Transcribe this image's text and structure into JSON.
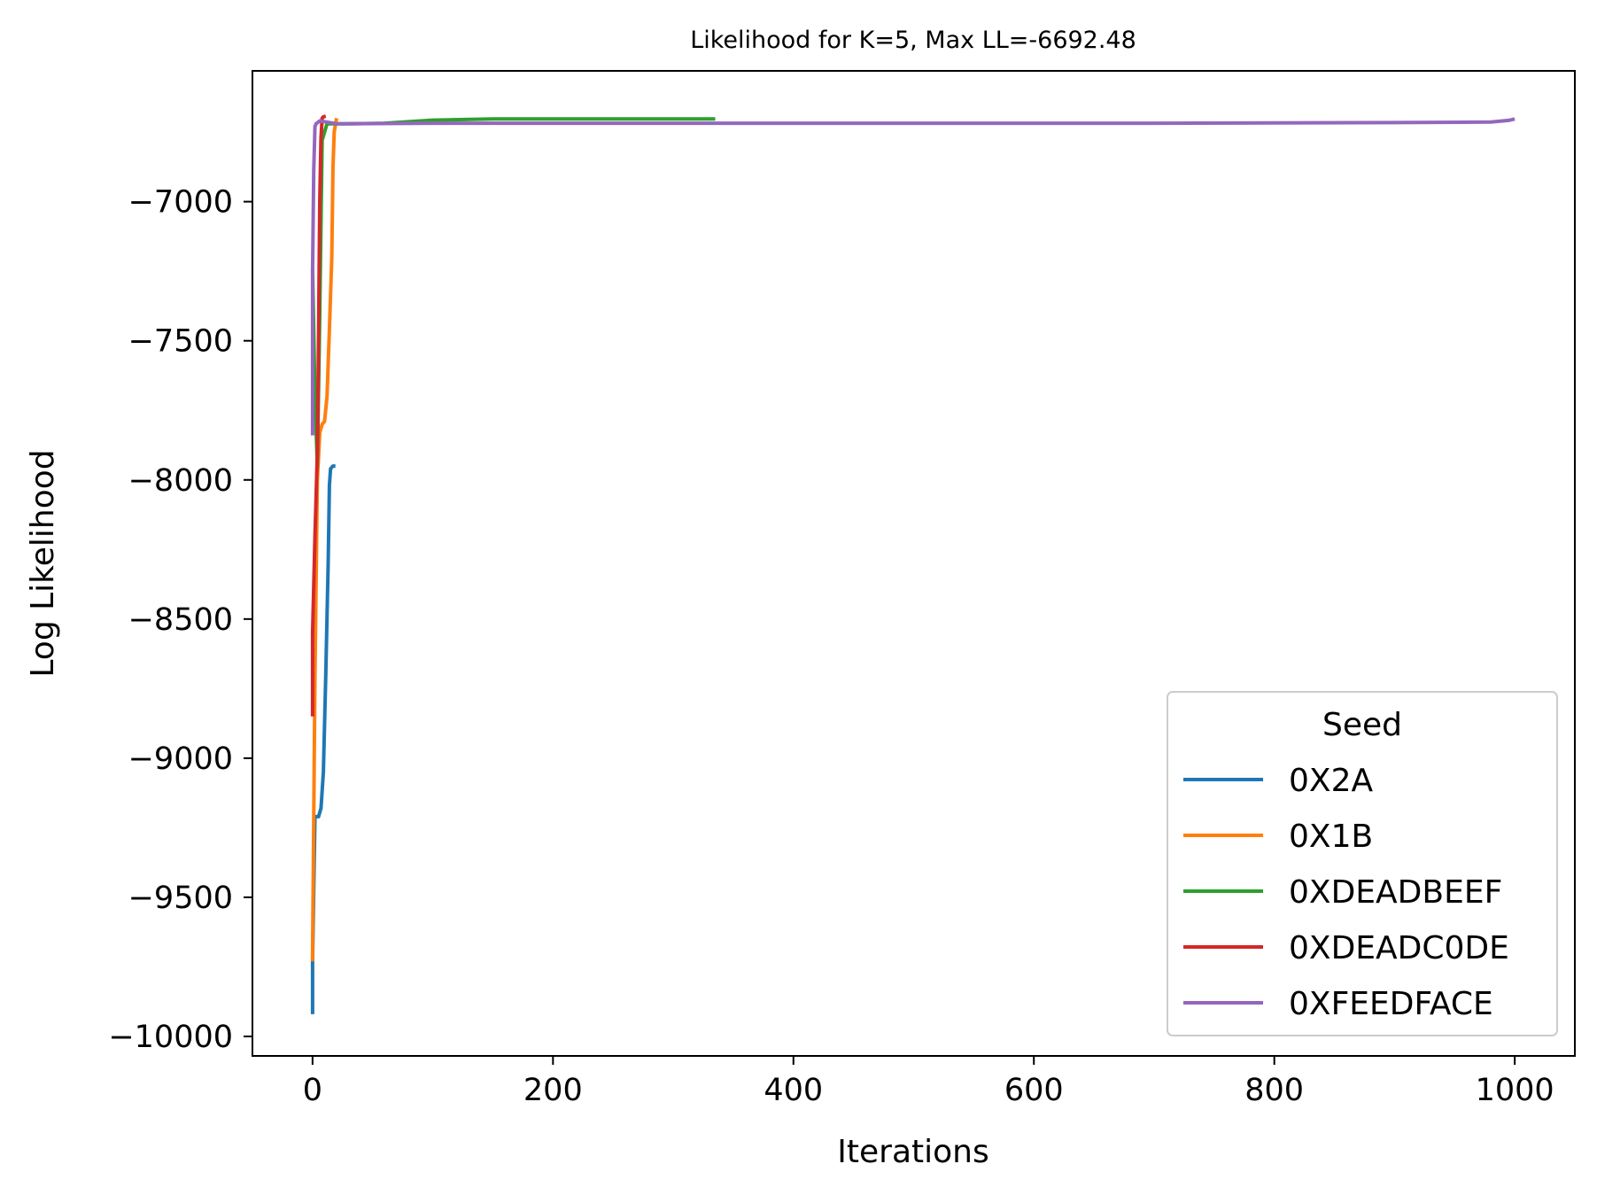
{
  "chart_data": {
    "type": "line",
    "title": "Likelihood for K=5,  Max LL=-6692.48",
    "xlabel": "Iterations",
    "ylabel": "Log Likelihood",
    "xlim": [
      -50,
      1050
    ],
    "ylim": [
      -10070,
      -6530
    ],
    "xticks": [
      0,
      200,
      400,
      600,
      800,
      1000
    ],
    "xtick_labels": [
      "0",
      "200",
      "400",
      "600",
      "800",
      "1000"
    ],
    "yticks": [
      -10000,
      -9500,
      -9000,
      -8500,
      -8000,
      -7500,
      -7000
    ],
    "ytick_labels": [
      "−10000",
      "−9500",
      "−9000",
      "−8500",
      "−8000",
      "−7500",
      "−7000"
    ],
    "grid": false,
    "legend": {
      "title": "Seed",
      "placement": "lower-right"
    },
    "series": [
      {
        "name": "0X2A",
        "color": "#1f77b4",
        "points": [
          [
            0,
            -9920
          ],
          [
            0,
            -9730
          ],
          [
            2,
            -9210
          ],
          [
            5,
            -9210
          ],
          [
            7,
            -9180
          ],
          [
            9,
            -9050
          ],
          [
            11,
            -8700
          ],
          [
            13,
            -8300
          ],
          [
            14,
            -8020
          ],
          [
            15,
            -7960
          ],
          [
            17,
            -7950
          ],
          [
            19,
            -7950
          ]
        ]
      },
      {
        "name": "0X1B",
        "color": "#ff7f0e",
        "points": [
          [
            0,
            -9730
          ],
          [
            0,
            -9700
          ],
          [
            2,
            -8700
          ],
          [
            4,
            -8000
          ],
          [
            6,
            -7830
          ],
          [
            8,
            -7800
          ],
          [
            10,
            -7790
          ],
          [
            12,
            -7700
          ],
          [
            14,
            -7460
          ],
          [
            16,
            -7200
          ],
          [
            17,
            -6880
          ],
          [
            18,
            -6750
          ],
          [
            20,
            -6700
          ]
        ]
      },
      {
        "name": "0XDEADBEEF",
        "color": "#2ca02c",
        "points": [
          [
            0,
            -7240
          ],
          [
            2,
            -7700
          ],
          [
            4,
            -7950
          ],
          [
            6,
            -7400
          ],
          [
            8,
            -6780
          ],
          [
            12,
            -6720
          ],
          [
            30,
            -6720
          ],
          [
            60,
            -6718
          ],
          [
            100,
            -6707
          ],
          [
            150,
            -6703
          ],
          [
            250,
            -6703
          ],
          [
            335,
            -6703
          ]
        ]
      },
      {
        "name": "0XDEADC0DE",
        "color": "#d62728",
        "points": [
          [
            0,
            -8850
          ],
          [
            0,
            -8550
          ],
          [
            2,
            -8200
          ],
          [
            4,
            -7900
          ],
          [
            5,
            -7500
          ],
          [
            6,
            -7000
          ],
          [
            7,
            -6770
          ],
          [
            8,
            -6700
          ],
          [
            9,
            -6695
          ],
          [
            11,
            -6693
          ]
        ]
      },
      {
        "name": "0XFEEDFACE",
        "color": "#9467bd",
        "points": [
          [
            0,
            -7840
          ],
          [
            0,
            -7250
          ],
          [
            1,
            -6890
          ],
          [
            2,
            -6730
          ],
          [
            3,
            -6720
          ],
          [
            6,
            -6710
          ],
          [
            20,
            -6720
          ],
          [
            100,
            -6718
          ],
          [
            300,
            -6718
          ],
          [
            500,
            -6718
          ],
          [
            700,
            -6718
          ],
          [
            900,
            -6716
          ],
          [
            980,
            -6714
          ],
          [
            995,
            -6708
          ],
          [
            1000,
            -6703
          ]
        ]
      }
    ]
  }
}
